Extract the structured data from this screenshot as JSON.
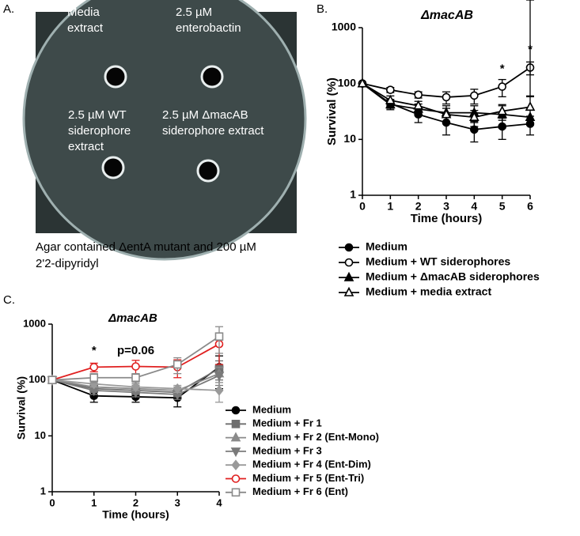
{
  "panel_a": {
    "label": "A.",
    "wells": [
      {
        "lines": [
          "Media",
          "extract"
        ]
      },
      {
        "lines": [
          "2.5 µM",
          "enterobactin"
        ]
      },
      {
        "lines": [
          "2.5 µM WT",
          "siderophore",
          "extract"
        ]
      },
      {
        "lines": [
          "2.5 µM ΔmacAB",
          "siderophore extract"
        ]
      }
    ],
    "caption": [
      "Agar contained ΔentA mutant and 200 µM",
      "2'2-dipyridyl"
    ]
  },
  "chart_data": [
    {
      "type": "line",
      "label": "B.",
      "title": "ΔmacAB",
      "x_label": "Time (hours)",
      "y_label": "Survival (%)",
      "x": [
        0,
        1,
        2,
        3,
        4,
        5,
        6
      ],
      "xlim": [
        0,
        6
      ],
      "xticks": [
        0,
        1,
        2,
        3,
        4,
        5,
        6
      ],
      "ylim": [
        1,
        1000
      ],
      "yticks": [
        1,
        10,
        100,
        1000
      ],
      "log_y": true,
      "legend": "bottom",
      "series": [
        {
          "name": "Medium",
          "color": "#000000",
          "marker": "circle",
          "filled": true,
          "values": [
            100,
            44,
            28,
            20,
            15,
            17,
            19
          ],
          "errors": [
            0,
            8,
            8,
            8,
            6,
            7,
            7
          ]
        },
        {
          "name": "Medium + WT siderophores",
          "color": "#000000",
          "marker": "circle",
          "filled": false,
          "values": [
            100,
            77,
            63,
            57,
            61,
            88,
            193
          ],
          "errors": [
            0,
            8,
            8,
            14,
            18,
            30,
            50
          ]
        },
        {
          "name": "Medium + ΔmacAB siderophores",
          "color": "#000000",
          "marker": "triangle-up",
          "filled": true,
          "values": [
            100,
            42,
            35,
            30,
            30,
            28,
            25
          ],
          "errors": [
            0,
            8,
            8,
            10,
            10,
            12,
            35
          ]
        },
        {
          "name": "Medium + media extract",
          "color": "#000000",
          "marker": "triangle-up",
          "filled": false,
          "values": [
            100,
            50,
            40,
            28,
            25,
            32,
            38
          ],
          "errors": [
            0,
            10,
            8,
            8,
            8,
            10,
            20
          ]
        }
      ],
      "annotations": [
        {
          "text": "*",
          "x": 5,
          "y": 180
        },
        {
          "text": "*",
          "x": 6,
          "y": 400
        }
      ]
    },
    {
      "type": "line",
      "label": "C.",
      "title": "ΔmacAB",
      "x_label": "Time (hours)",
      "y_label": "Survival (%)",
      "x": [
        0,
        1,
        2,
        3,
        4
      ],
      "xlim": [
        0,
        4
      ],
      "xticks": [
        0,
        1,
        2,
        3,
        4
      ],
      "ylim": [
        1,
        1000
      ],
      "yticks": [
        1,
        10,
        100,
        1000
      ],
      "log_y": true,
      "legend": "right",
      "series": [
        {
          "name": "Medium",
          "color": "#000000",
          "marker": "circle",
          "filled": true,
          "values": [
            100,
            52,
            50,
            48,
            170
          ],
          "errors": [
            0,
            12,
            10,
            15,
            100
          ]
        },
        {
          "name": "Medium + Fr 1",
          "color": "#6e6e6e",
          "marker": "square",
          "filled": true,
          "values": [
            100,
            70,
            65,
            60,
            160
          ],
          "errors": [
            0,
            10,
            10,
            10,
            60
          ]
        },
        {
          "name": "Medium + Fr 2 (Ent-Mono)",
          "color": "#8a8a8a",
          "marker": "triangle-up",
          "filled": true,
          "values": [
            100,
            75,
            70,
            65,
            130
          ],
          "errors": [
            0,
            10,
            10,
            10,
            40
          ]
        },
        {
          "name": "Medium + Fr 3",
          "color": "#7a7a7a",
          "marker": "triangle-down",
          "filled": true,
          "values": [
            100,
            65,
            60,
            55,
            120
          ],
          "errors": [
            0,
            10,
            10,
            10,
            40
          ]
        },
        {
          "name": "Medium + Fr 4 (Ent-Dim)",
          "color": "#9a9a9a",
          "marker": "diamond",
          "filled": true,
          "values": [
            100,
            85,
            75,
            70,
            65
          ],
          "errors": [
            0,
            10,
            10,
            10,
            25
          ]
        },
        {
          "name": "Medium + Fr 5 (Ent-Tri)",
          "color": "#e02020",
          "marker": "circle",
          "filled": false,
          "values": [
            100,
            170,
            175,
            170,
            440
          ],
          "errors": [
            0,
            30,
            50,
            60,
            250
          ]
        },
        {
          "name": "Medium + Fr 6 (Ent)",
          "color": "#8a8a8a",
          "marker": "square",
          "filled": false,
          "values": [
            100,
            110,
            110,
            190,
            600
          ],
          "errors": [
            0,
            20,
            20,
            60,
            300
          ]
        }
      ],
      "annotations": [
        {
          "text": "*",
          "x": 1,
          "y": 330
        },
        {
          "text": "p=0.06",
          "x": 2,
          "y": 330
        }
      ]
    }
  ]
}
